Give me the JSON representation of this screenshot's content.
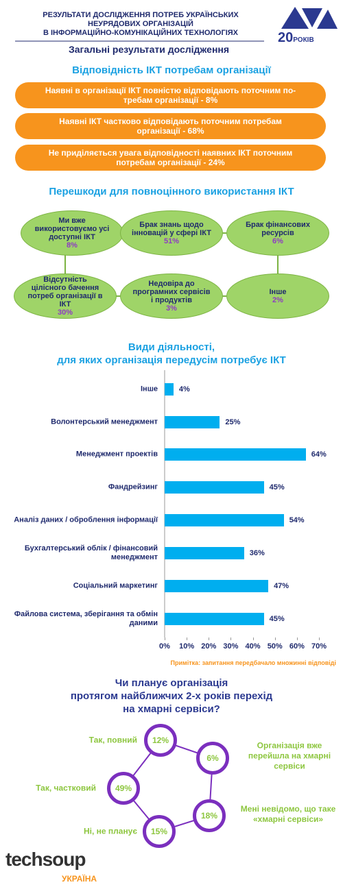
{
  "header": {
    "title_lines": [
      "РЕЗУЛЬТАТИ ДОСЛІДЖЕННЯ ПОТРЕБ УКРАЇНСЬКИХ",
      "НЕУРЯДОВИХ ОРГАНІЗАЦІЙ",
      "В ІНФОРМАЦІЙНО-КОМУНІКАЦІЙНИХ ТЕХНОЛОГІЯХ"
    ],
    "subtitle": "Загальні результати дослідження",
    "logo": {
      "number": "20",
      "word": "РОКІВ"
    }
  },
  "ict_match": {
    "title": "Відповідність ІКТ потребам організації",
    "items": [
      "Наявні в організації ІКТ повністю відповідають поточним по-требам організації - 8%",
      "Наявні ІКТ частково відповідають поточним потребам організації - 68%",
      "Не приділяється увага відповідності наявних ІКТ поточним потребам організації - 24%"
    ]
  },
  "barriers": {
    "title": "Перешкоди для повноцінного використання ІКТ",
    "nodes": [
      {
        "label": "Ми вже використовуємо усі доступні ІКТ",
        "value_label": "8%"
      },
      {
        "label": "Брак знань щодо інновацій у сфері ІКТ",
        "value_label": "51%"
      },
      {
        "label": "Брак фінансових ресурсів",
        "value_label": "6%"
      },
      {
        "label": "Відсутність цілісного бачення потреб організації в ІКТ",
        "value_label": "30%"
      },
      {
        "label": "Недовіра до програмних сервісів і продуктів",
        "value_label": "3%"
      },
      {
        "label": "Інше",
        "value_label": "2%"
      }
    ]
  },
  "chart_data": {
    "type": "bar",
    "orientation": "horizontal",
    "title_lines": [
      "Види діяльності,",
      "для яких організація передусім потребує ІКТ"
    ],
    "categories": [
      "Інше",
      "Волонтерський менеджмент",
      "Менеджмент проектів",
      "Фандрейзинг",
      "Аналіз даних / оброблення інформації",
      "Бухгалтерський облік / фінансовий менеджмент",
      "Соціальний маркетинг",
      "Файлова система, зберігання та обмін даними"
    ],
    "values": [
      4,
      25,
      64,
      45,
      54,
      36,
      47,
      45
    ],
    "value_labels": [
      "4%",
      "25%",
      "64%",
      "45%",
      "54%",
      "36%",
      "47%",
      "45%"
    ],
    "color": "#00aeef",
    "xlim": [
      0,
      70
    ],
    "xticks": [
      {
        "value": 0,
        "label": "0%"
      },
      {
        "value": 10,
        "label": "10%"
      },
      {
        "value": 20,
        "label": "20%"
      },
      {
        "value": 30,
        "label": "30%"
      },
      {
        "value": 40,
        "label": "40%"
      },
      {
        "value": 50,
        "label": "50%"
      },
      {
        "value": 60,
        "label": "60%"
      },
      {
        "value": 70,
        "label": "70%"
      }
    ],
    "note": "Примітка: запитання передбачало множинні відповіді"
  },
  "cloud": {
    "title_lines": [
      "Чи планує організація",
      "протягом найближчих 2-х років перехід",
      "на хмарні сервіси?"
    ],
    "nodes": [
      {
        "label": "Так, повний",
        "value_label": "12%"
      },
      {
        "label": "Організація вже перейшла на хмарні сервіси",
        "value_label": "6%"
      },
      {
        "label": "Мені невідомо, що таке «хмарні сервіси»",
        "value_label": "18%"
      },
      {
        "label": "Ні, не планує",
        "value_label": "15%"
      },
      {
        "label": "Так, частковий",
        "value_label": "49%"
      }
    ]
  },
  "footer": {
    "brand": "techsoup",
    "country": "УКРАЇНА"
  }
}
